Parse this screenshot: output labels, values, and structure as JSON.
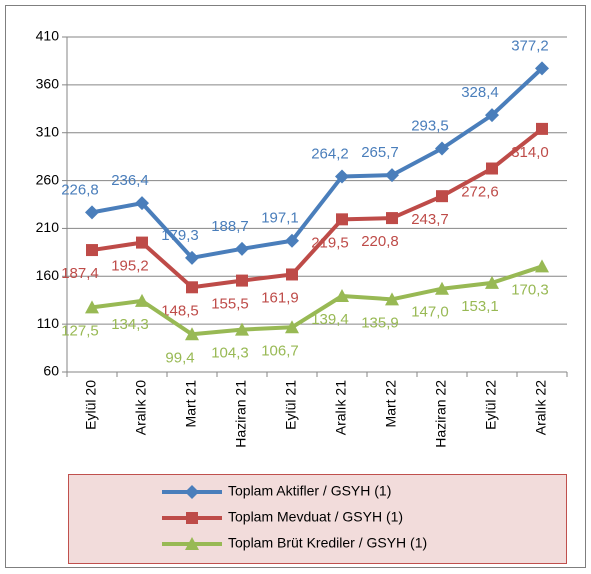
{
  "chart_data": {
    "type": "line",
    "categories": [
      "Eylül 20",
      "Aralık 20",
      "Mart 21",
      "Haziran 21",
      "Eylül 21",
      "Aralık 21",
      "Mart 22",
      "Haziran 22",
      "Eylül 22",
      "Aralık 22"
    ],
    "series": [
      {
        "name": "Toplam Aktifler / GSYH (1)",
        "color": "#4a7ebb",
        "marker": "diamond",
        "values": [
          226.8,
          236.4,
          179.3,
          188.7,
          197.1,
          264.2,
          265.7,
          293.5,
          328.4,
          377.2
        ],
        "value_labels": [
          "226,8",
          "236,4",
          "179,3",
          "188,7",
          "197,1",
          "264,2",
          "265,7",
          "293,5",
          "328,4",
          "377,2"
        ]
      },
      {
        "name": "Toplam Mevduat / GSYH (1)",
        "color": "#be4b48",
        "marker": "square",
        "values": [
          187.4,
          195.2,
          148.5,
          155.5,
          161.9,
          219.5,
          220.8,
          243.7,
          272.6,
          314.0
        ],
        "value_labels": [
          "187,4",
          "195,2",
          "148,5",
          "155,5",
          "161,9",
          "219,5",
          "220,8",
          "243,7",
          "272,6",
          "314,0"
        ]
      },
      {
        "name": "Toplam Brüt Krediler / GSYH (1)",
        "color": "#98b954",
        "marker": "triangle",
        "values": [
          127.5,
          134.3,
          99.4,
          104.3,
          106.7,
          139.4,
          135.9,
          147.0,
          153.1,
          170.3
        ],
        "value_labels": [
          "127,5",
          "134,3",
          "99,4",
          "104,3",
          "106,7",
          "139,4",
          "135,9",
          "147,0",
          "153,1",
          "170,3"
        ]
      }
    ],
    "ylim": [
      60,
      410
    ],
    "yticks": [
      60,
      110,
      160,
      210,
      260,
      310,
      360,
      410
    ],
    "grid": true
  }
}
